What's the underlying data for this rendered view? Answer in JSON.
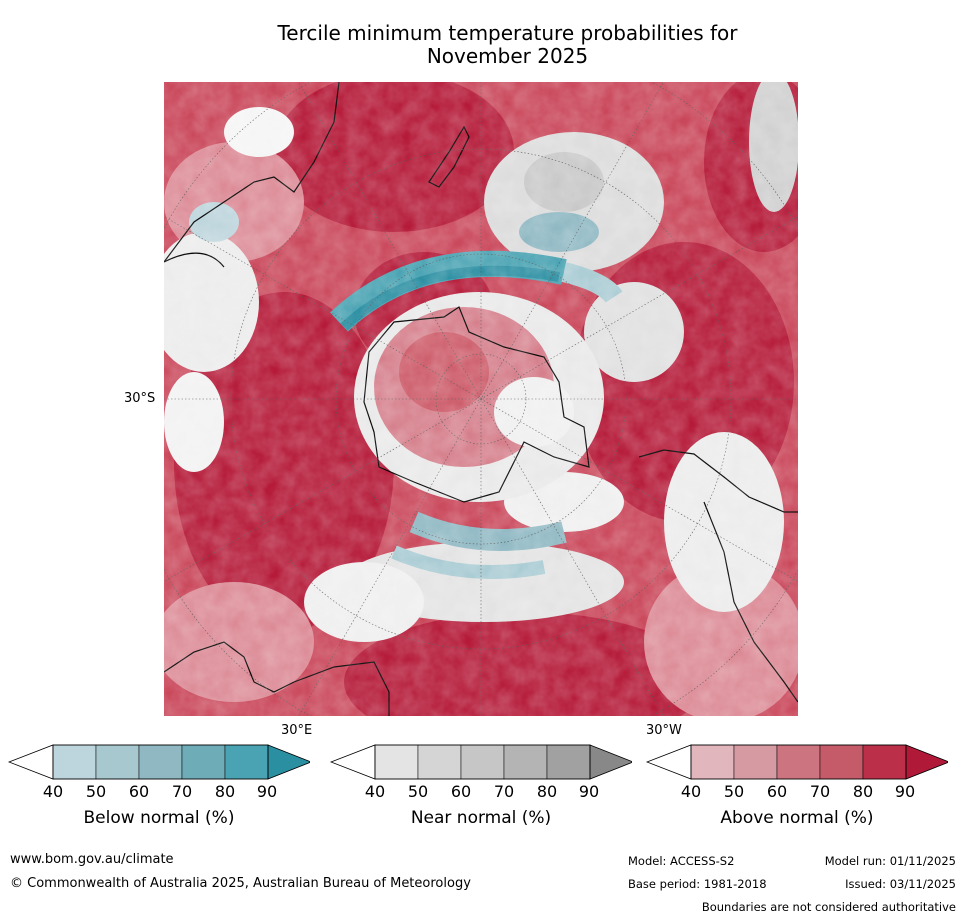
{
  "title_line1": "Tercile minimum temperature probabilities for",
  "title_line2": "November 2025",
  "map": {
    "projection": "south-polar stereographic",
    "lat_label": "30°S",
    "lon_labels": [
      "30°E",
      "30°W"
    ],
    "palette": {
      "above": "#b51b39",
      "above_mid": "#c9475a",
      "above_light": "#dc8b96",
      "neutral_light": "#ececec",
      "neutral_mid": "#c8c8c8",
      "below": "#4aa3b3",
      "below_light": "#a9cbd3",
      "land_outline": "#000000"
    }
  },
  "colorbars": [
    {
      "name": "Below normal (%)",
      "ticks": [
        "40",
        "50",
        "60",
        "70",
        "80",
        "90"
      ],
      "colors": [
        "#bdd5dc",
        "#a8c8cf",
        "#8fb8c3",
        "#6eacb7",
        "#4aa3b3",
        "#2b8fa2"
      ]
    },
    {
      "name": "Near normal (%)",
      "ticks": [
        "40",
        "50",
        "60",
        "70",
        "80",
        "90"
      ],
      "colors": [
        "#e4e4e4",
        "#d5d5d5",
        "#c6c6c6",
        "#b4b4b4",
        "#a1a1a1",
        "#888888"
      ]
    },
    {
      "name": "Above normal (%)",
      "ticks": [
        "40",
        "50",
        "60",
        "70",
        "80",
        "90"
      ],
      "colors": [
        "#e2b6bd",
        "#d69aa3",
        "#cc7580",
        "#c55a68",
        "#bb3048",
        "#b01a38"
      ]
    }
  ],
  "footer": {
    "website": "www.bom.gov.au/climate",
    "copyright": "© Commonwealth of Australia 2025, Australian Bureau of Meteorology",
    "model": "Model: ACCESS-S2",
    "base_period": "Base period: 1981-2018",
    "model_run": "Model run: 01/11/2025",
    "issued": "Issued: 03/11/2025",
    "disclaimer": "Boundaries are not considered authoritative"
  }
}
